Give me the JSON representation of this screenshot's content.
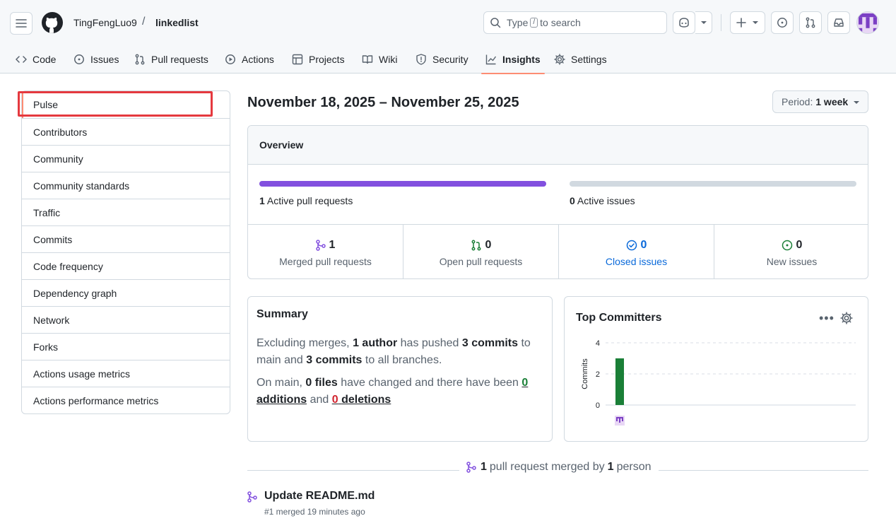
{
  "header": {
    "owner": "TingFengLuo9",
    "separator": "/",
    "repo": "linkedlist",
    "search_prefix": "Type",
    "search_key": "/",
    "search_suffix": "to search"
  },
  "tabs": [
    {
      "label": "Code",
      "icon": "code-icon"
    },
    {
      "label": "Issues",
      "icon": "issue-icon"
    },
    {
      "label": "Pull requests",
      "icon": "pull-request-icon"
    },
    {
      "label": "Actions",
      "icon": "play-icon"
    },
    {
      "label": "Projects",
      "icon": "table-icon"
    },
    {
      "label": "Wiki",
      "icon": "book-icon"
    },
    {
      "label": "Security",
      "icon": "shield-icon"
    },
    {
      "label": "Insights",
      "icon": "graph-icon",
      "active": true
    },
    {
      "label": "Settings",
      "icon": "gear-icon"
    }
  ],
  "sidebar": {
    "items": [
      {
        "label": "Pulse",
        "selected": true
      },
      {
        "label": "Contributors"
      },
      {
        "label": "Community"
      },
      {
        "label": "Community standards"
      },
      {
        "label": "Traffic"
      },
      {
        "label": "Commits"
      },
      {
        "label": "Code frequency"
      },
      {
        "label": "Dependency graph"
      },
      {
        "label": "Network"
      },
      {
        "label": "Forks"
      },
      {
        "label": "Actions usage metrics"
      },
      {
        "label": "Actions performance metrics"
      }
    ]
  },
  "main": {
    "date_range": "November 18, 2025 – November 25, 2025",
    "period_label": "Period:",
    "period_value": "1 week",
    "overview": {
      "title": "Overview",
      "active_prs_count": "1",
      "active_prs_label": "Active pull requests",
      "active_prs_fill": 1.0,
      "active_issues_count": "0",
      "active_issues_label": "Active issues",
      "active_issues_fill": 0.0,
      "stats": [
        {
          "num": "1",
          "label": "Merged pull requests",
          "icon": "merge-icon"
        },
        {
          "num": "0",
          "label": "Open pull requests",
          "icon": "open-pr-icon"
        },
        {
          "num": "0",
          "label": "Closed issues",
          "icon": "check-circle-icon"
        },
        {
          "num": "0",
          "label": "New issues",
          "icon": "issue-open-icon"
        }
      ]
    },
    "summary": {
      "title": "Summary",
      "p1_a": "Excluding merges,",
      "p1_b": "1 author",
      "p1_c": "has pushed",
      "p1_d": "3 commits",
      "p1_e": "to main and",
      "p1_f": "3 commits",
      "p1_g": "to all branches.",
      "p2_a": "On main,",
      "p2_b": "0 files",
      "p2_c": "have changed and there have been",
      "p2_d": "0",
      "p2_e": "additions",
      "p2_f": "and",
      "p2_g": "0",
      "p2_h": "deletions"
    },
    "committers": {
      "title": "Top Committers",
      "dots": "•••"
    },
    "merged_summary": {
      "count": "1",
      "text_a": "pull request merged by",
      "people": "1",
      "text_b": "person"
    },
    "pr": {
      "title": "Update README.md",
      "meta": "#1 merged 19 minutes ago"
    }
  },
  "colors": {
    "accent_purple": "#8250df",
    "green": "#1a7f37",
    "blue": "#0969da",
    "tab_underline": "#fd8c73",
    "highlight": "#e5393f"
  },
  "chart_data": {
    "type": "bar",
    "categories": [
      "TingFengLuo9"
    ],
    "values": [
      3
    ],
    "title": "",
    "xlabel": "",
    "ylabel": "Commits",
    "ylim": [
      0,
      4
    ],
    "yticks": [
      "4",
      "2",
      "0"
    ],
    "grid": true,
    "bar_color": "#1a7f37"
  }
}
